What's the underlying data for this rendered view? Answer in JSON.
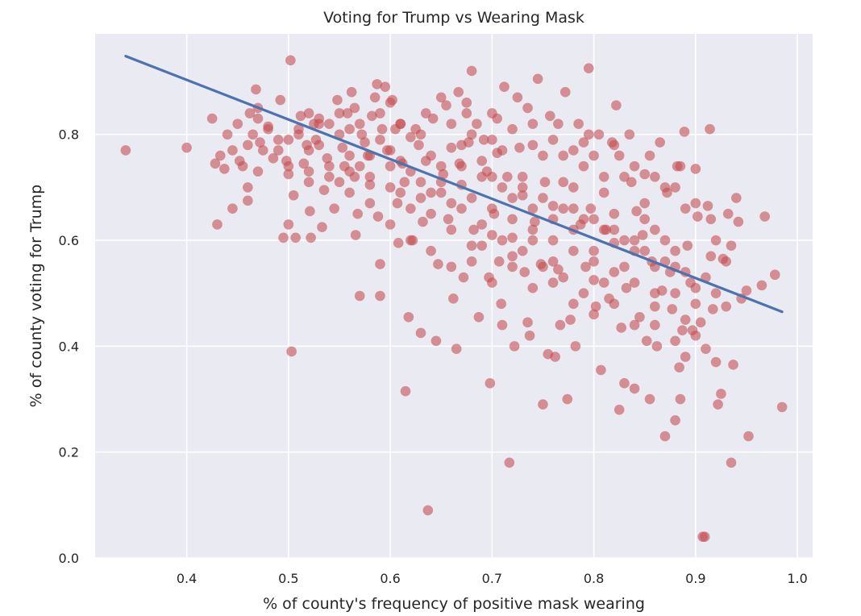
{
  "chart_data": {
    "type": "scatter",
    "title": "Voting for Trump vs Wearing Mask",
    "xlabel": "% of county's frequency of positive mask wearing",
    "ylabel": "% of county voting for Trump",
    "xlim": [
      0.31,
      1.015
    ],
    "ylim": [
      0.0,
      0.99
    ],
    "xticks": [
      0.4,
      0.5,
      0.6,
      0.7,
      0.8,
      0.9,
      1.0
    ],
    "yticks": [
      0.0,
      0.2,
      0.4,
      0.6,
      0.8
    ],
    "xtick_labels": [
      "0.4",
      "0.5",
      "0.6",
      "0.7",
      "0.8",
      "0.9",
      "1.0"
    ],
    "ytick_labels": [
      "0.0",
      "0.2",
      "0.4",
      "0.6",
      "0.8"
    ],
    "grid": true,
    "background_color": "#eaeaf2",
    "grid_color": "#ffffff",
    "point_color": "#c44e52",
    "point_alpha": 0.6,
    "line_color": "#4c72b0",
    "trend_line": {
      "x": [
        0.34,
        0.985
      ],
      "y": [
        0.948,
        0.465
      ]
    },
    "points": [
      [
        0.34,
        0.77
      ],
      [
        0.4,
        0.775
      ],
      [
        0.425,
        0.83
      ],
      [
        0.428,
        0.745
      ],
      [
        0.43,
        0.63
      ],
      [
        0.433,
        0.76
      ],
      [
        0.437,
        0.735
      ],
      [
        0.44,
        0.8
      ],
      [
        0.445,
        0.66
      ],
      [
        0.45,
        0.82
      ],
      [
        0.452,
        0.75
      ],
      [
        0.455,
        0.74
      ],
      [
        0.46,
        0.7
      ],
      [
        0.46,
        0.675
      ],
      [
        0.462,
        0.84
      ],
      [
        0.465,
        0.8
      ],
      [
        0.468,
        0.885
      ],
      [
        0.47,
        0.83
      ],
      [
        0.472,
        0.785
      ],
      [
        0.475,
        0.77
      ],
      [
        0.48,
        0.815
      ],
      [
        0.485,
        0.755
      ],
      [
        0.49,
        0.79
      ],
      [
        0.492,
        0.865
      ],
      [
        0.495,
        0.605
      ],
      [
        0.498,
        0.75
      ],
      [
        0.5,
        0.725
      ],
      [
        0.5,
        0.63
      ],
      [
        0.502,
        0.94
      ],
      [
        0.503,
        0.39
      ],
      [
        0.505,
        0.685
      ],
      [
        0.507,
        0.605
      ],
      [
        0.51,
        0.8
      ],
      [
        0.512,
        0.835
      ],
      [
        0.515,
        0.745
      ],
      [
        0.518,
        0.78
      ],
      [
        0.52,
        0.73
      ],
      [
        0.521,
        0.655
      ],
      [
        0.522,
        0.605
      ],
      [
        0.525,
        0.82
      ],
      [
        0.527,
        0.79
      ],
      [
        0.53,
        0.83
      ],
      [
        0.533,
        0.625
      ],
      [
        0.535,
        0.695
      ],
      [
        0.538,
        0.755
      ],
      [
        0.54,
        0.82
      ],
      [
        0.545,
        0.66
      ],
      [
        0.548,
        0.865
      ],
      [
        0.55,
        0.71
      ],
      [
        0.553,
        0.775
      ],
      [
        0.555,
        0.74
      ],
      [
        0.558,
        0.84
      ],
      [
        0.56,
        0.81
      ],
      [
        0.562,
        0.88
      ],
      [
        0.565,
        0.72
      ],
      [
        0.566,
        0.61
      ],
      [
        0.568,
        0.65
      ],
      [
        0.57,
        0.495
      ],
      [
        0.572,
        0.8
      ],
      [
        0.575,
        0.785
      ],
      [
        0.578,
        0.76
      ],
      [
        0.58,
        0.705
      ],
      [
        0.582,
        0.835
      ],
      [
        0.585,
        0.87
      ],
      [
        0.587,
        0.895
      ],
      [
        0.588,
        0.645
      ],
      [
        0.59,
        0.555
      ],
      [
        0.59,
        0.495
      ],
      [
        0.592,
        0.81
      ],
      [
        0.595,
        0.89
      ],
      [
        0.597,
        0.77
      ],
      [
        0.6,
        0.74
      ],
      [
        0.602,
        0.865
      ],
      [
        0.605,
        0.81
      ],
      [
        0.607,
        0.67
      ],
      [
        0.608,
        0.595
      ],
      [
        0.61,
        0.82
      ],
      [
        0.612,
        0.745
      ],
      [
        0.614,
        0.71
      ],
      [
        0.615,
        0.315
      ],
      [
        0.618,
        0.455
      ],
      [
        0.62,
        0.795
      ],
      [
        0.622,
        0.6
      ],
      [
        0.625,
        0.81
      ],
      [
        0.628,
        0.78
      ],
      [
        0.63,
        0.425
      ],
      [
        0.632,
        0.635
      ],
      [
        0.635,
        0.75
      ],
      [
        0.637,
        0.09
      ],
      [
        0.64,
        0.69
      ],
      [
        0.642,
        0.83
      ],
      [
        0.645,
        0.41
      ],
      [
        0.647,
        0.555
      ],
      [
        0.65,
        0.87
      ],
      [
        0.652,
        0.725
      ],
      [
        0.655,
        0.855
      ],
      [
        0.657,
        0.64
      ],
      [
        0.66,
        0.775
      ],
      [
        0.662,
        0.49
      ],
      [
        0.665,
        0.395
      ],
      [
        0.667,
        0.88
      ],
      [
        0.668,
        0.745
      ],
      [
        0.67,
        0.705
      ],
      [
        0.672,
        0.53
      ],
      [
        0.675,
        0.86
      ],
      [
        0.677,
        0.785
      ],
      [
        0.68,
        0.92
      ],
      [
        0.682,
        0.62
      ],
      [
        0.685,
        0.82
      ],
      [
        0.687,
        0.455
      ],
      [
        0.69,
        0.59
      ],
      [
        0.692,
        0.79
      ],
      [
        0.695,
        0.73
      ],
      [
        0.697,
        0.53
      ],
      [
        0.698,
        0.33
      ],
      [
        0.7,
        0.84
      ],
      [
        0.702,
        0.65
      ],
      [
        0.705,
        0.765
      ],
      [
        0.707,
        0.56
      ],
      [
        0.709,
        0.48
      ],
      [
        0.71,
        0.44
      ],
      [
        0.712,
        0.89
      ],
      [
        0.715,
        0.72
      ],
      [
        0.717,
        0.18
      ],
      [
        0.72,
        0.605
      ],
      [
        0.722,
        0.4
      ],
      [
        0.725,
        0.87
      ],
      [
        0.727,
        0.775
      ],
      [
        0.73,
        0.685
      ],
      [
        0.732,
        0.54
      ],
      [
        0.735,
        0.445
      ],
      [
        0.737,
        0.42
      ],
      [
        0.74,
        0.82
      ],
      [
        0.742,
        0.635
      ],
      [
        0.745,
        0.905
      ],
      [
        0.748,
        0.555
      ],
      [
        0.75,
        0.29
      ],
      [
        0.752,
        0.71
      ],
      [
        0.755,
        0.385
      ],
      [
        0.757,
        0.835
      ],
      [
        0.76,
        0.665
      ],
      [
        0.762,
        0.38
      ],
      [
        0.765,
        0.545
      ],
      [
        0.767,
        0.44
      ],
      [
        0.77,
        0.76
      ],
      [
        0.772,
        0.88
      ],
      [
        0.774,
        0.3
      ],
      [
        0.777,
        0.45
      ],
      [
        0.78,
        0.7
      ],
      [
        0.782,
        0.4
      ],
      [
        0.785,
        0.82
      ],
      [
        0.787,
        0.63
      ],
      [
        0.79,
        0.785
      ],
      [
        0.792,
        0.55
      ],
      [
        0.795,
        0.925
      ],
      [
        0.797,
        0.66
      ],
      [
        0.8,
        0.525
      ],
      [
        0.802,
        0.475
      ],
      [
        0.805,
        0.8
      ],
      [
        0.807,
        0.355
      ],
      [
        0.81,
        0.72
      ],
      [
        0.812,
        0.62
      ],
      [
        0.815,
        0.49
      ],
      [
        0.818,
        0.785
      ],
      [
        0.82,
        0.595
      ],
      [
        0.822,
        0.855
      ],
      [
        0.825,
        0.28
      ],
      [
        0.827,
        0.435
      ],
      [
        0.83,
        0.33
      ],
      [
        0.832,
        0.51
      ],
      [
        0.835,
        0.8
      ],
      [
        0.837,
        0.71
      ],
      [
        0.84,
        0.32
      ],
      [
        0.842,
        0.655
      ],
      [
        0.845,
        0.455
      ],
      [
        0.848,
        0.61
      ],
      [
        0.85,
        0.725
      ],
      [
        0.852,
        0.41
      ],
      [
        0.855,
        0.3
      ],
      [
        0.857,
        0.56
      ],
      [
        0.86,
        0.475
      ],
      [
        0.862,
        0.4
      ],
      [
        0.865,
        0.785
      ],
      [
        0.867,
        0.505
      ],
      [
        0.87,
        0.23
      ],
      [
        0.872,
        0.69
      ],
      [
        0.875,
        0.54
      ],
      [
        0.877,
        0.47
      ],
      [
        0.88,
        0.26
      ],
      [
        0.882,
        0.74
      ],
      [
        0.884,
        0.36
      ],
      [
        0.885,
        0.3
      ],
      [
        0.887,
        0.43
      ],
      [
        0.889,
        0.805
      ],
      [
        0.89,
        0.38
      ],
      [
        0.892,
        0.59
      ],
      [
        0.895,
        0.52
      ],
      [
        0.897,
        0.43
      ],
      [
        0.9,
        0.735
      ],
      [
        0.902,
        0.645
      ],
      [
        0.905,
        0.445
      ],
      [
        0.907,
        0.04
      ],
      [
        0.909,
        0.04
      ],
      [
        0.91,
        0.395
      ],
      [
        0.912,
        0.665
      ],
      [
        0.914,
        0.81
      ],
      [
        0.915,
        0.57
      ],
      [
        0.917,
        0.47
      ],
      [
        0.92,
        0.37
      ],
      [
        0.922,
        0.29
      ],
      [
        0.925,
        0.31
      ],
      [
        0.927,
        0.565
      ],
      [
        0.93,
        0.475
      ],
      [
        0.932,
        0.65
      ],
      [
        0.935,
        0.18
      ],
      [
        0.937,
        0.365
      ],
      [
        0.94,
        0.68
      ],
      [
        0.942,
        0.635
      ],
      [
        0.945,
        0.49
      ],
      [
        0.95,
        0.505
      ],
      [
        0.952,
        0.23
      ],
      [
        0.965,
        0.515
      ],
      [
        0.968,
        0.645
      ],
      [
        0.978,
        0.535
      ],
      [
        0.985,
        0.285
      ],
      [
        0.52,
        0.77
      ],
      [
        0.54,
        0.72
      ],
      [
        0.56,
        0.76
      ],
      [
        0.58,
        0.72
      ],
      [
        0.6,
        0.77
      ],
      [
        0.61,
        0.69
      ],
      [
        0.62,
        0.73
      ],
      [
        0.63,
        0.68
      ],
      [
        0.64,
        0.76
      ],
      [
        0.65,
        0.71
      ],
      [
        0.66,
        0.67
      ],
      [
        0.67,
        0.74
      ],
      [
        0.68,
        0.68
      ],
      [
        0.69,
        0.72
      ],
      [
        0.7,
        0.66
      ],
      [
        0.71,
        0.7
      ],
      [
        0.72,
        0.64
      ],
      [
        0.73,
        0.7
      ],
      [
        0.74,
        0.62
      ],
      [
        0.75,
        0.68
      ],
      [
        0.76,
        0.6
      ],
      [
        0.77,
        0.66
      ],
      [
        0.78,
        0.58
      ],
      [
        0.79,
        0.64
      ],
      [
        0.8,
        0.56
      ],
      [
        0.81,
        0.62
      ],
      [
        0.82,
        0.54
      ],
      [
        0.83,
        0.6
      ],
      [
        0.84,
        0.52
      ],
      [
        0.85,
        0.58
      ],
      [
        0.86,
        0.5
      ],
      [
        0.87,
        0.56
      ],
      [
        0.88,
        0.5
      ],
      [
        0.89,
        0.54
      ],
      [
        0.9,
        0.48
      ],
      [
        0.55,
        0.8
      ],
      [
        0.57,
        0.74
      ],
      [
        0.59,
        0.79
      ],
      [
        0.61,
        0.75
      ],
      [
        0.63,
        0.8
      ],
      [
        0.65,
        0.74
      ],
      [
        0.67,
        0.78
      ],
      [
        0.69,
        0.75
      ],
      [
        0.71,
        0.77
      ],
      [
        0.73,
        0.72
      ],
      [
        0.75,
        0.76
      ],
      [
        0.77,
        0.71
      ],
      [
        0.79,
        0.74
      ],
      [
        0.81,
        0.69
      ],
      [
        0.83,
        0.72
      ],
      [
        0.85,
        0.67
      ],
      [
        0.87,
        0.7
      ],
      [
        0.89,
        0.66
      ],
      [
        0.66,
        0.62
      ],
      [
        0.68,
        0.59
      ],
      [
        0.7,
        0.61
      ],
      [
        0.72,
        0.57
      ],
      [
        0.74,
        0.6
      ],
      [
        0.76,
        0.56
      ],
      [
        0.78,
        0.62
      ],
      [
        0.8,
        0.58
      ],
      [
        0.82,
        0.65
      ],
      [
        0.84,
        0.6
      ],
      [
        0.86,
        0.62
      ],
      [
        0.88,
        0.58
      ],
      [
        0.64,
        0.65
      ],
      [
        0.62,
        0.66
      ],
      [
        0.6,
        0.7
      ],
      [
        0.58,
        0.76
      ],
      [
        0.56,
        0.73
      ],
      [
        0.53,
        0.78
      ],
      [
        0.51,
        0.81
      ],
      [
        0.49,
        0.77
      ],
      [
        0.47,
        0.73
      ],
      [
        0.66,
        0.82
      ],
      [
        0.68,
        0.8
      ],
      [
        0.7,
        0.79
      ],
      [
        0.72,
        0.81
      ],
      [
        0.74,
        0.78
      ],
      [
        0.76,
        0.79
      ],
      [
        0.78,
        0.77
      ],
      [
        0.8,
        0.76
      ],
      [
        0.82,
        0.78
      ],
      [
        0.84,
        0.74
      ],
      [
        0.86,
        0.72
      ],
      [
        0.88,
        0.7
      ],
      [
        0.9,
        0.67
      ],
      [
        0.92,
        0.6
      ],
      [
        0.93,
        0.56
      ],
      [
        0.91,
        0.53
      ],
      [
        0.89,
        0.45
      ],
      [
        0.87,
        0.6
      ],
      [
        0.85,
        0.64
      ],
      [
        0.83,
        0.55
      ],
      [
        0.81,
        0.52
      ],
      [
        0.79,
        0.5
      ],
      [
        0.77,
        0.53
      ],
      [
        0.75,
        0.55
      ],
      [
        0.73,
        0.58
      ],
      [
        0.71,
        0.6
      ],
      [
        0.69,
        0.63
      ],
      [
        0.67,
        0.66
      ],
      [
        0.65,
        0.69
      ],
      [
        0.63,
        0.71
      ],
      [
        0.61,
        0.82
      ],
      [
        0.59,
        0.84
      ],
      [
        0.57,
        0.82
      ],
      [
        0.55,
        0.84
      ],
      [
        0.53,
        0.82
      ],
      [
        0.5,
        0.79
      ],
      [
        0.48,
        0.81
      ],
      [
        0.46,
        0.78
      ],
      [
        0.445,
        0.77
      ],
      [
        0.47,
        0.85
      ],
      [
        0.52,
        0.84
      ],
      [
        0.565,
        0.85
      ],
      [
        0.6,
        0.86
      ],
      [
        0.635,
        0.84
      ],
      [
        0.675,
        0.84
      ],
      [
        0.705,
        0.83
      ],
      [
        0.735,
        0.85
      ],
      [
        0.765,
        0.82
      ],
      [
        0.795,
        0.8
      ],
      [
        0.825,
        0.76
      ],
      [
        0.855,
        0.76
      ],
      [
        0.885,
        0.74
      ],
      [
        0.915,
        0.64
      ],
      [
        0.935,
        0.59
      ],
      [
        0.62,
        0.6
      ],
      [
        0.64,
        0.58
      ],
      [
        0.66,
        0.55
      ],
      [
        0.68,
        0.56
      ],
      [
        0.7,
        0.52
      ],
      [
        0.72,
        0.55
      ],
      [
        0.74,
        0.51
      ],
      [
        0.76,
        0.52
      ],
      [
        0.78,
        0.48
      ],
      [
        0.8,
        0.46
      ],
      [
        0.82,
        0.48
      ],
      [
        0.84,
        0.44
      ],
      [
        0.86,
        0.44
      ],
      [
        0.88,
        0.41
      ],
      [
        0.9,
        0.42
      ],
      [
        0.6,
        0.63
      ],
      [
        0.58,
        0.67
      ],
      [
        0.56,
        0.69
      ],
      [
        0.54,
        0.74
      ],
      [
        0.52,
        0.71
      ],
      [
        0.5,
        0.74
      ],
      [
        0.7,
        0.72
      ],
      [
        0.72,
        0.68
      ],
      [
        0.74,
        0.66
      ],
      [
        0.76,
        0.64
      ],
      [
        0.78,
        0.66
      ],
      [
        0.8,
        0.64
      ],
      [
        0.82,
        0.62
      ],
      [
        0.84,
        0.58
      ],
      [
        0.86,
        0.55
      ],
      [
        0.88,
        0.55
      ],
      [
        0.9,
        0.51
      ],
      [
        0.92,
        0.5
      ]
    ]
  }
}
